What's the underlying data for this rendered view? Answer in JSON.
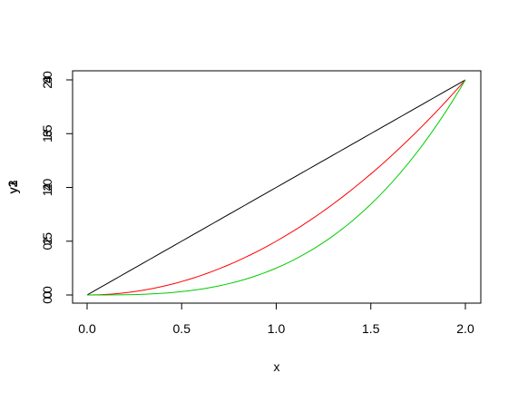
{
  "chart_data": {
    "type": "line",
    "xlabel": "x",
    "ylabel_overlay": [
      "y1",
      "y2",
      "y3"
    ],
    "xlim": [
      0,
      2
    ],
    "x_ticks": [
      "0.0",
      "0.5",
      "1.0",
      "1.5",
      "2.0"
    ],
    "y_axes": [
      {
        "ylim": [
          0,
          2
        ],
        "ticks": [
          0,
          0.5,
          1,
          1.5,
          2
        ],
        "tick_labels": [
          "0.0",
          "0.5",
          "1.0",
          "1.5",
          "2.0"
        ]
      },
      {
        "ylim": [
          0,
          4
        ],
        "ticks": [
          0,
          1,
          2,
          3,
          4
        ],
        "tick_labels": [
          "0",
          "1",
          "2",
          "3",
          "4"
        ]
      },
      {
        "ylim": [
          0,
          8
        ],
        "ticks": [
          0,
          2,
          4,
          6,
          8
        ],
        "tick_labels": [
          "0",
          "2",
          "4",
          "6",
          "8"
        ]
      }
    ],
    "series": [
      {
        "color": "#000000",
        "axis": 0,
        "x": [
          0,
          0.5,
          1.0,
          1.5,
          2.0
        ],
        "y": [
          0,
          0.5,
          1.0,
          1.5,
          2.0
        ]
      },
      {
        "color": "#ff0000",
        "axis": 1,
        "x": [
          0,
          0.5,
          1.0,
          1.5,
          2.0
        ],
        "y": [
          0,
          0.25,
          1.0,
          2.25,
          4.0
        ]
      },
      {
        "color": "#00cd00",
        "axis": 2,
        "x": [
          0,
          0.5,
          1.0,
          1.5,
          2.0
        ],
        "y": [
          0,
          0.125,
          1.0,
          3.375,
          8.0
        ]
      }
    ],
    "grid": false,
    "legend": "none"
  }
}
